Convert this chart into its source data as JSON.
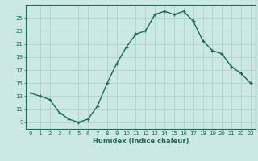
{
  "x": [
    0,
    1,
    2,
    3,
    4,
    5,
    6,
    7,
    8,
    9,
    10,
    11,
    12,
    13,
    14,
    15,
    16,
    17,
    18,
    19,
    20,
    21,
    22,
    23
  ],
  "y": [
    13.5,
    13.0,
    12.5,
    10.5,
    9.5,
    9.0,
    9.5,
    11.5,
    15.0,
    18.0,
    20.5,
    22.5,
    23.0,
    25.5,
    26.0,
    25.5,
    26.0,
    24.5,
    21.5,
    20.0,
    19.5,
    17.5,
    16.5,
    15.0
  ],
  "xlabel": "Humidex (Indice chaleur)",
  "xlim": [
    -0.5,
    23.5
  ],
  "ylim": [
    8.0,
    27.0
  ],
  "yticks": [
    9,
    11,
    13,
    15,
    17,
    19,
    21,
    23,
    25
  ],
  "xticks": [
    0,
    1,
    2,
    3,
    4,
    5,
    6,
    7,
    8,
    9,
    10,
    11,
    12,
    13,
    14,
    15,
    16,
    17,
    18,
    19,
    20,
    21,
    22,
    23
  ],
  "line_color": "#1a6b5a",
  "marker": "+",
  "bg_color": "#cce8e4",
  "grid_color": "#aacfcb",
  "axis_color": "#1a6b5a",
  "tick_color": "#1a6b5a",
  "label_color": "#1a6b5a",
  "tick_fontsize": 5.0,
  "xlabel_fontsize": 6.0,
  "linewidth": 1.0,
  "markersize": 3.5
}
